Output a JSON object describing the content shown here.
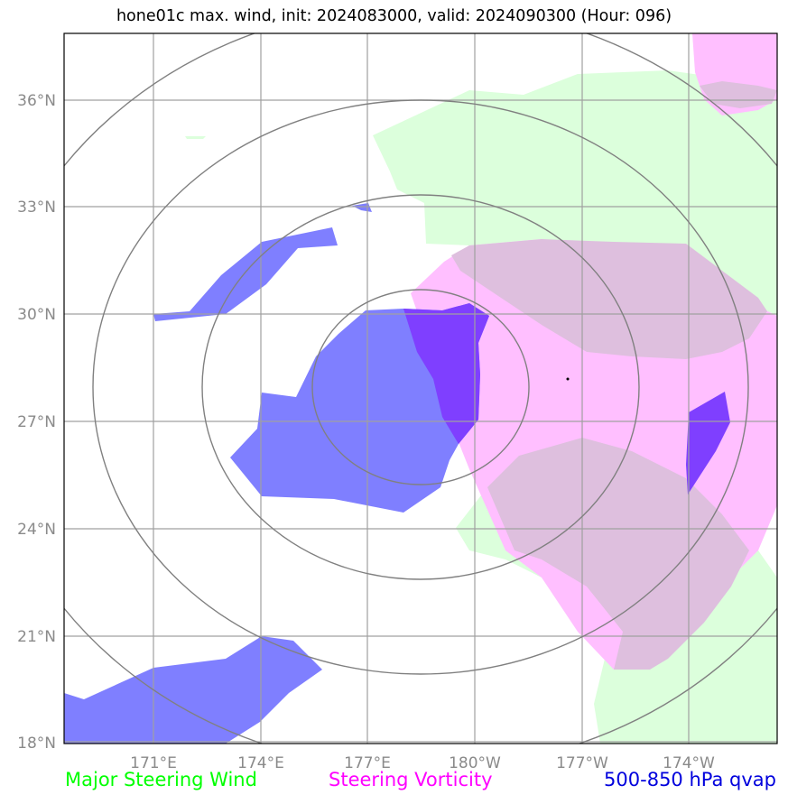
{
  "title": "hone01c max. wind, init: 2024083000, valid: 2024090300 (Hour: 096)",
  "map": {
    "lat_range": [
      18,
      38
    ],
    "lon_range_east": [
      168.5,
      188.5
    ],
    "lat_ticks": [
      "36°N",
      "33°N",
      "30°N",
      "27°N",
      "24°N",
      "21°N",
      "18°N"
    ],
    "lon_ticks": [
      "171°E",
      "174°E",
      "177°E",
      "180°W",
      "177°W",
      "174°W"
    ],
    "storm_center": {
      "lat": 28.2,
      "lon_east": 182.7
    },
    "range_rings": 4
  },
  "legend": [
    {
      "label": "Major Steering Wind",
      "color": "#00ff00"
    },
    {
      "label": "Steering Vorticity",
      "color": "#ff00ff"
    },
    {
      "label": "500-850 hPa qvap",
      "color": "#0000dd"
    }
  ],
  "colors": {
    "wind_fill": "#dcffdc",
    "vorticity_fill": "#ffbfff",
    "overlap_fill": "#debfde",
    "qvap_fill": "#7f7fff",
    "qvap_dark_fill": "#7f3fff",
    "grid": "#a0a0a0",
    "rings": "#808080"
  }
}
